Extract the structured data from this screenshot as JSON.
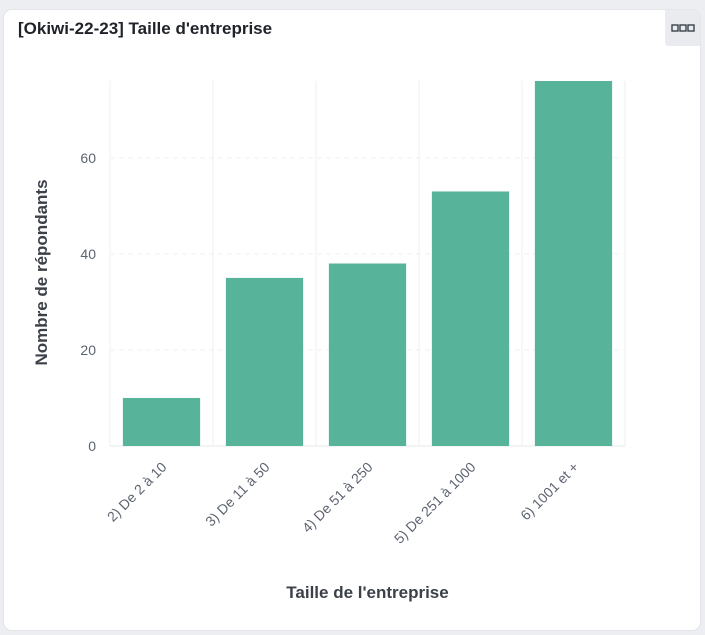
{
  "card": {
    "title": "[Okiwi-22-23] Taille d'entreprise",
    "menu_icon": "more-horizontal-icon"
  },
  "chart_data": {
    "type": "bar",
    "title": "",
    "xlabel": "Taille de l'entreprise",
    "ylabel": "Nombre de répondants",
    "categories": [
      "2) De 2 à 10",
      "3) De 11 à 50",
      "4) De 51 à 250",
      "5) De 251 à 1000",
      "6) 1001 et +"
    ],
    "values": [
      10,
      35,
      38,
      53,
      76
    ],
    "ylim": [
      0,
      76
    ],
    "yticks": [
      0,
      20,
      40,
      60
    ],
    "grid": true,
    "bar_color": "#58b39b",
    "grid_color": "#eeeff2"
  }
}
